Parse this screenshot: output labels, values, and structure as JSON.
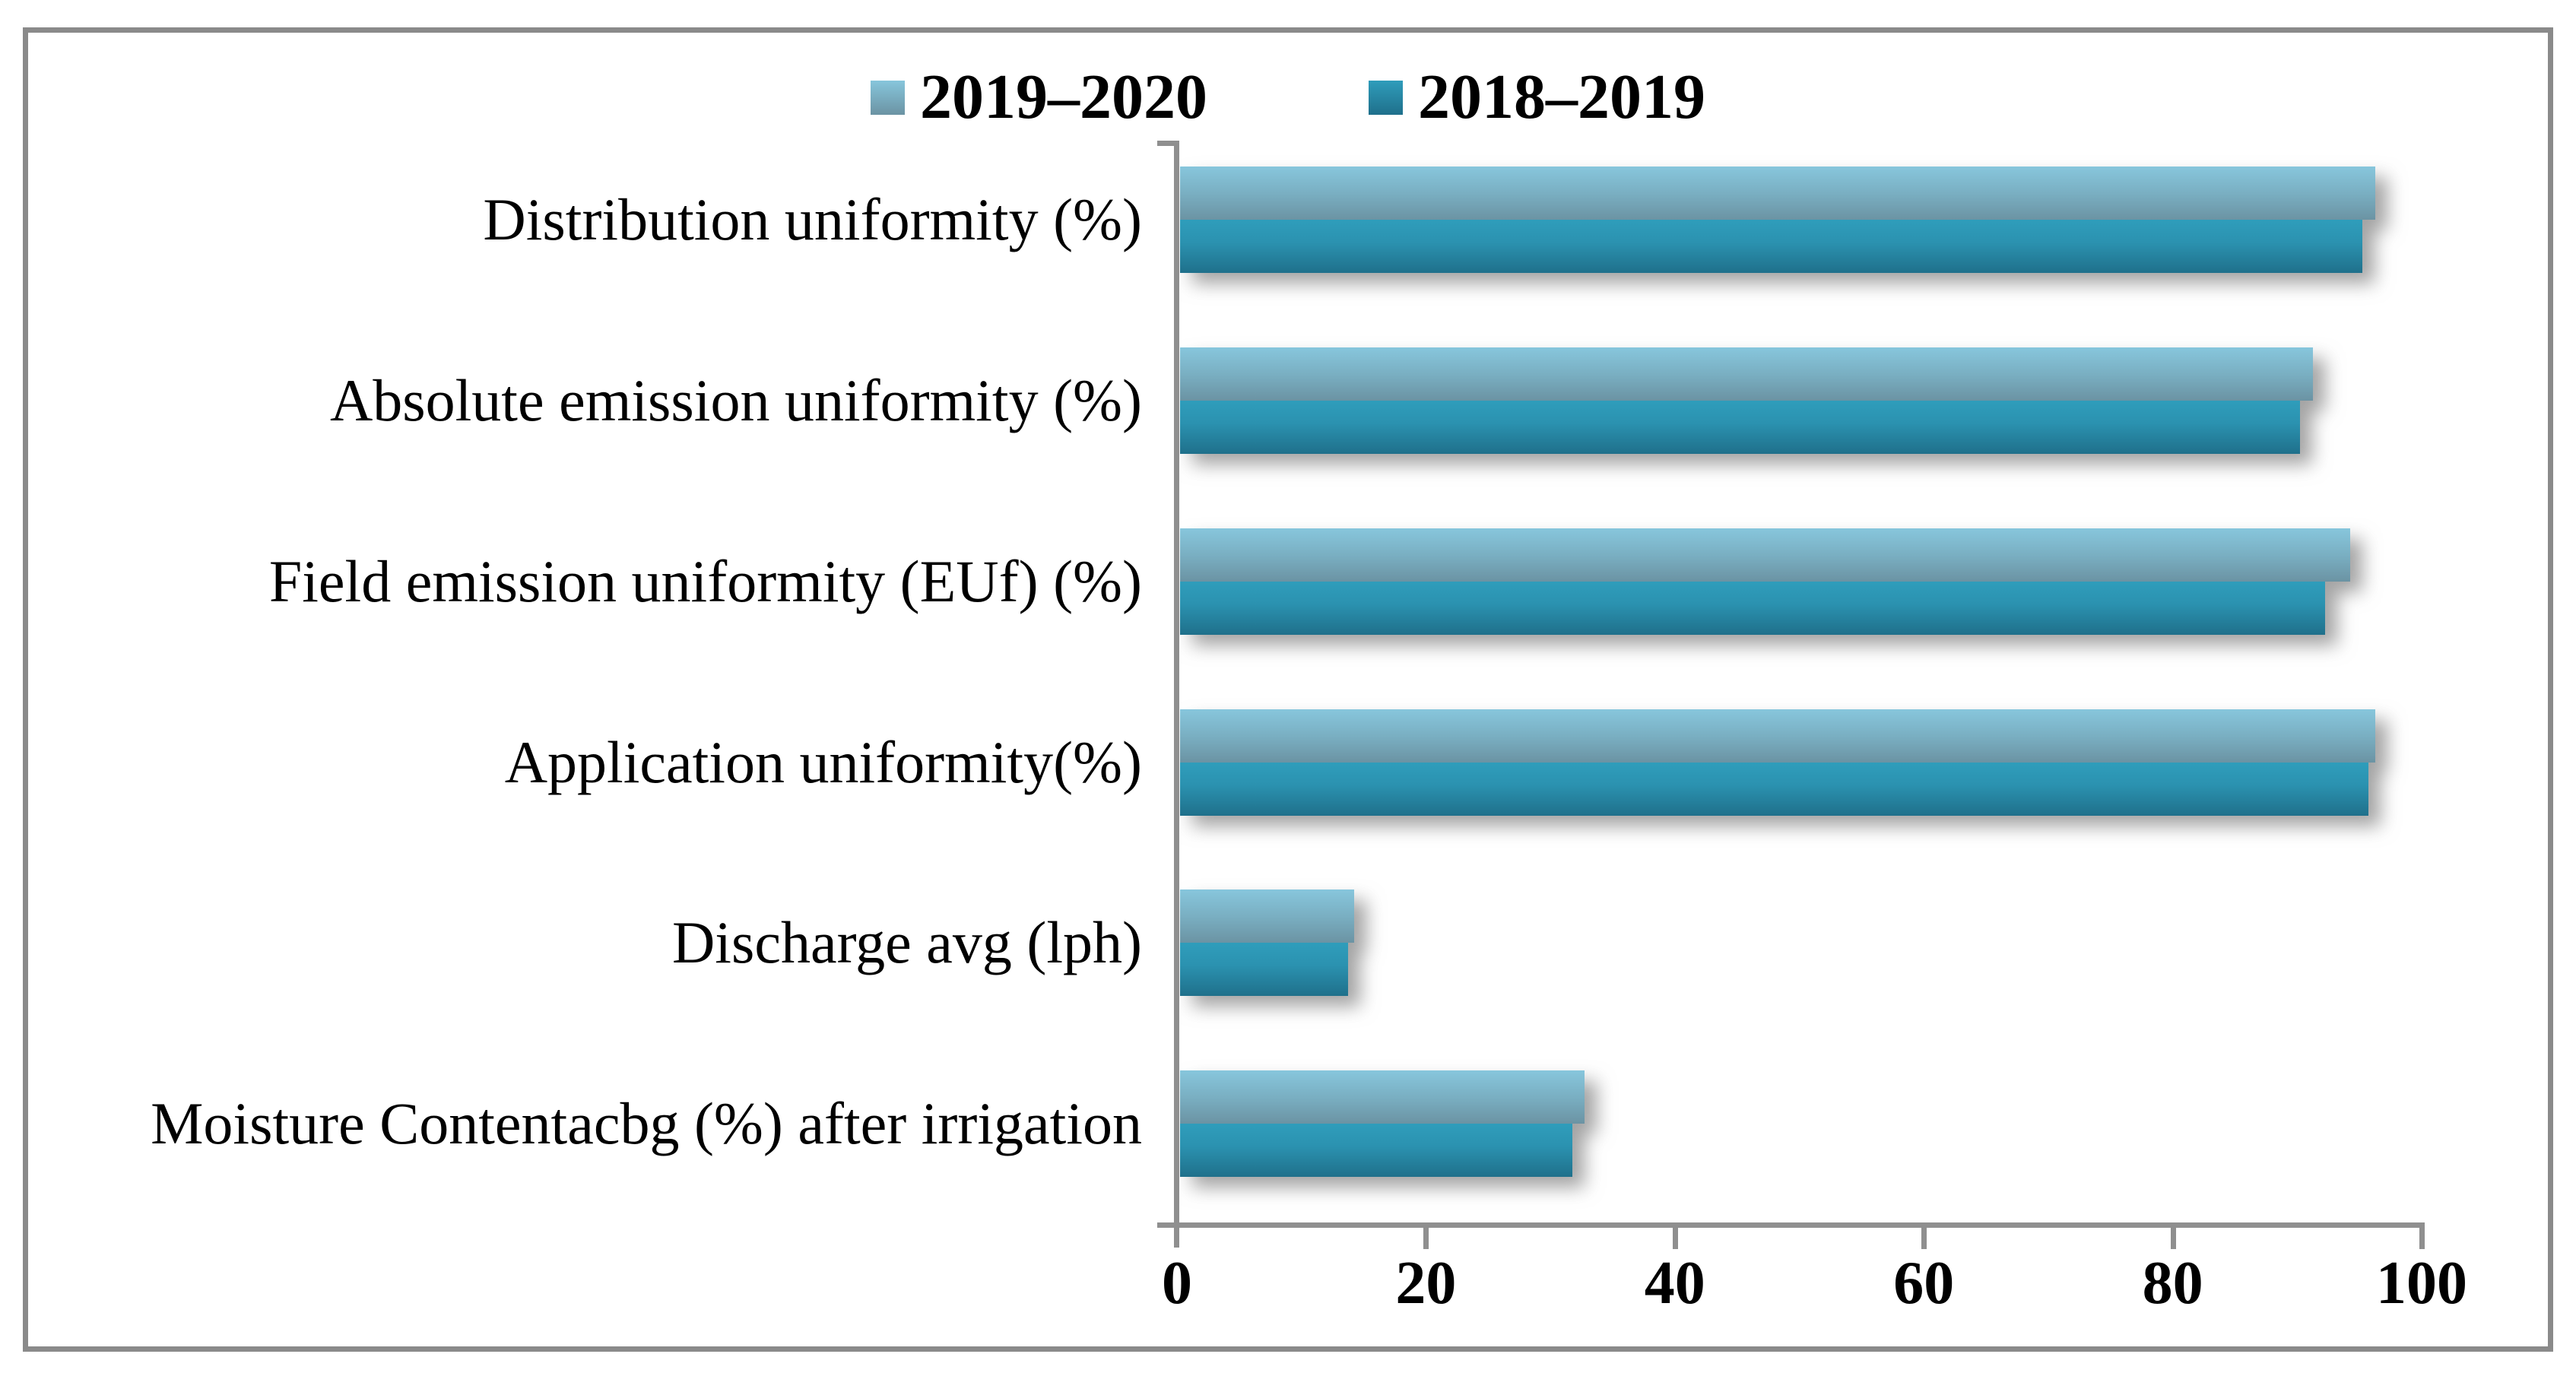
{
  "figure": {
    "background": "#ffffff",
    "border_color": "#8a8a8a",
    "axis_color": "#8f8f8f",
    "text_color": "#000000"
  },
  "chart_data": {
    "type": "bar",
    "orientation": "horizontal",
    "title": "",
    "xlabel": "",
    "ylabel": "",
    "categories": [
      "Distribution uniformity (%)",
      "Absolute emission uniformity (%)",
      "Field emission uniformity (EUf) (%)",
      "Application uniformity(%)",
      "Discharge avg (lph)",
      "Moisture Contentacbg (%) after irrigation"
    ],
    "series": [
      {
        "name": "2019–2020",
        "color_top": "#87c6dc",
        "color_bottom": "#6b93a3",
        "values": [
          96,
          91,
          94,
          96,
          14,
          32.5
        ]
      },
      {
        "name": "2018–2019",
        "color_top": "#2f9dbb",
        "color_bottom": "#1f708b",
        "values": [
          95,
          90,
          92,
          95.5,
          13.5,
          31.5
        ]
      }
    ],
    "xlim": [
      0,
      100
    ],
    "x_ticks": [
      0,
      20,
      40,
      60,
      80,
      100
    ],
    "grid": false,
    "legend_position": "top-center",
    "bar_style": "gradient-with-drop-shadow"
  }
}
